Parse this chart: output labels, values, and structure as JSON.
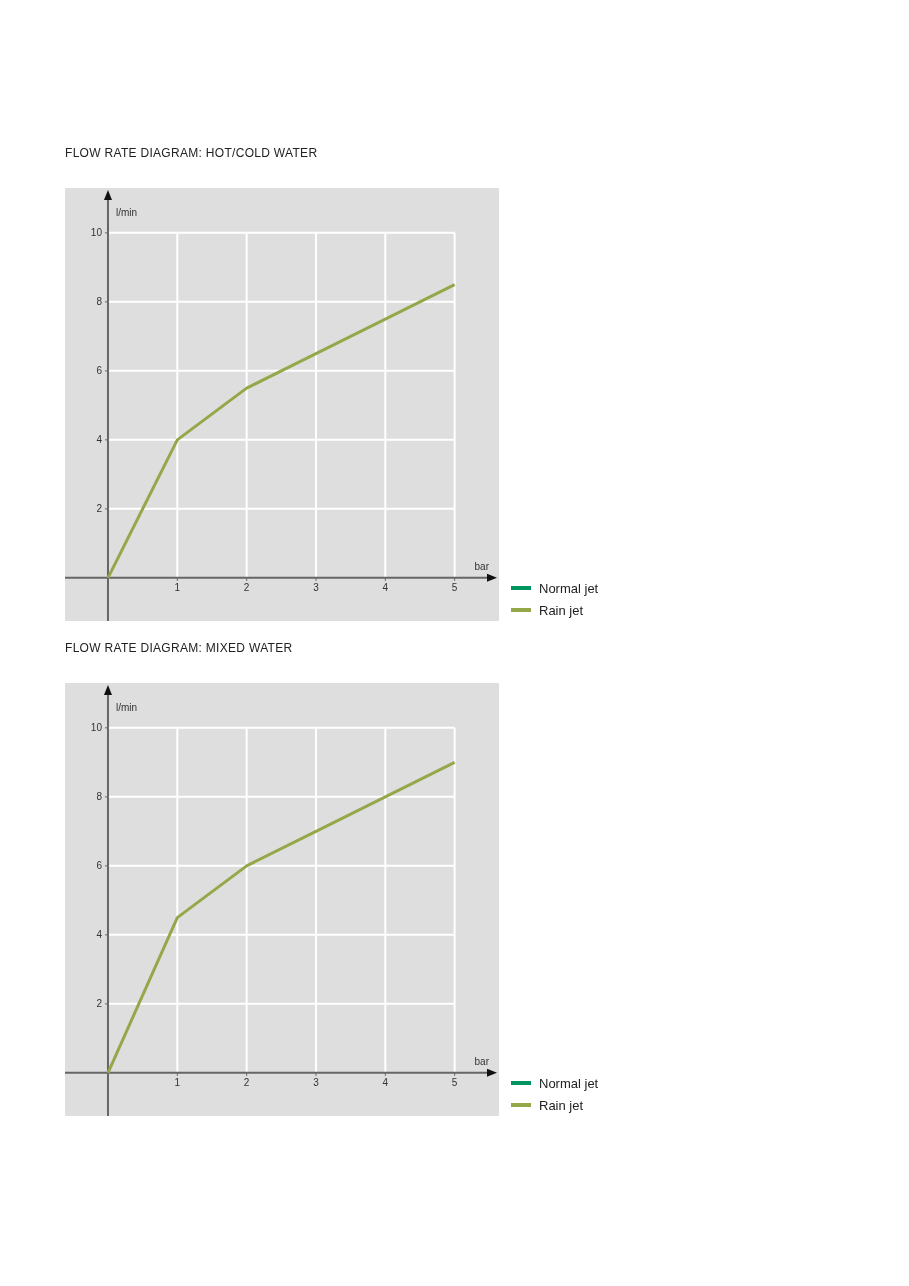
{
  "chart_data": [
    {
      "type": "line",
      "title": "FLOW RATE DIAGRAM: HOT/COLD WATER",
      "xlabel": "bar",
      "ylabel": "l/min",
      "x": [
        0,
        1,
        2,
        3,
        4,
        5
      ],
      "series": [
        {
          "name": "Normal jet",
          "color": "#00945e",
          "values": [
            null,
            null,
            null,
            null,
            null,
            null
          ]
        },
        {
          "name": "Rain jet",
          "color": "#94a84a",
          "values": [
            0,
            4,
            5.5,
            6.5,
            7.5,
            8.5
          ]
        }
      ],
      "xlim": [
        -0.62,
        5.64
      ],
      "xticks": [
        1,
        2,
        3,
        4,
        5
      ],
      "ylim": [
        -1.25,
        11.3
      ],
      "yticks": [
        2,
        4,
        6,
        8,
        10
      ],
      "grid": true,
      "legend": "bottom right",
      "marker": "none",
      "line_style": "solid"
    },
    {
      "type": "line",
      "title": "FLOW RATE DIAGRAM: MIXED WATER",
      "xlabel": "bar",
      "ylabel": "l/min",
      "x": [
        0,
        1,
        2,
        3,
        4,
        5
      ],
      "series": [
        {
          "name": "Normal jet",
          "color": "#00945e",
          "values": [
            null,
            null,
            null,
            null,
            null,
            null
          ]
        },
        {
          "name": "Rain jet",
          "color": "#94a84a",
          "values": [
            0,
            4.5,
            6,
            7,
            8,
            9
          ]
        }
      ],
      "xlim": [
        -0.62,
        5.64
      ],
      "xticks": [
        1,
        2,
        3,
        4,
        5
      ],
      "ylim": [
        -1.25,
        11.3
      ],
      "yticks": [
        2,
        4,
        6,
        8,
        10
      ],
      "grid": true,
      "legend": "bottom right",
      "marker": "none",
      "line_style": "solid"
    }
  ]
}
